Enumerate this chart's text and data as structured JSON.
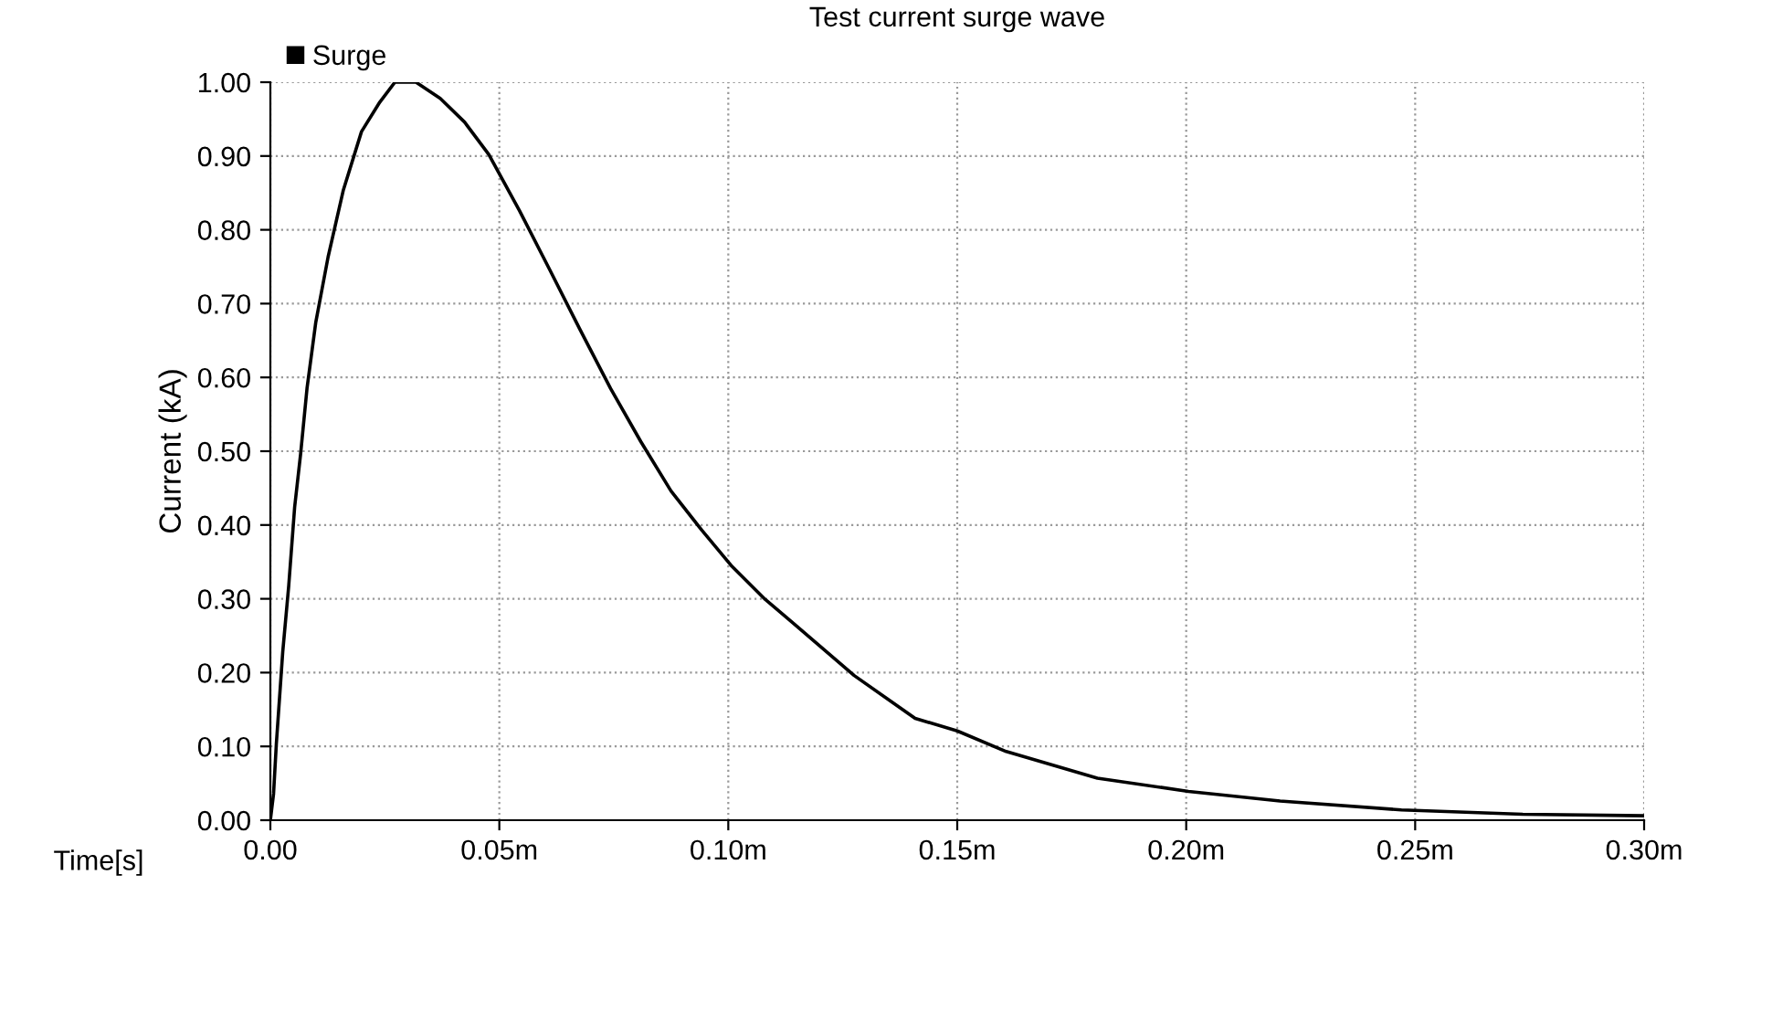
{
  "chart_data": {
    "type": "line",
    "title": "Test current surge wave",
    "xlabel": "Time[s]",
    "ylabel": "Current (kA)",
    "series": [
      {
        "name": "Surge",
        "color": "#000000",
        "x": [
          0,
          0.0007,
          0.0013,
          0.0027,
          0.004,
          0.0053,
          0.0066,
          0.008,
          0.0099,
          0.0126,
          0.0159,
          0.0199,
          0.0239,
          0.0272,
          0.0318,
          0.0371,
          0.0424,
          0.0477,
          0.0544,
          0.061,
          0.0676,
          0.0743,
          0.0809,
          0.0875,
          0.0942,
          0.1008,
          0.1081,
          0.1142,
          0.1275,
          0.1408,
          0.15,
          0.1607,
          0.1806,
          0.2005,
          0.2205,
          0.247,
          0.2735,
          0.3
        ],
        "values": [
          0,
          0.036,
          0.103,
          0.228,
          0.317,
          0.424,
          0.496,
          0.585,
          0.674,
          0.763,
          0.853,
          0.933,
          0.973,
          1.0,
          1.0,
          0.978,
          0.946,
          0.902,
          0.826,
          0.746,
          0.665,
          0.585,
          0.513,
          0.446,
          0.393,
          0.344,
          0.299,
          0.267,
          0.196,
          0.138,
          0.121,
          0.093,
          0.057,
          0.039,
          0.026,
          0.014,
          0.008,
          0.006
        ]
      }
    ],
    "xlim": [
      0,
      0.3
    ],
    "ylim": [
      0,
      1.0
    ],
    "xticks": [
      {
        "value": 0,
        "label": "0.00"
      },
      {
        "value": 0.05,
        "label": "0.05m"
      },
      {
        "value": 0.1,
        "label": "0.10m"
      },
      {
        "value": 0.15,
        "label": "0.15m"
      },
      {
        "value": 0.2,
        "label": "0.20m"
      },
      {
        "value": 0.25,
        "label": "0.25m"
      },
      {
        "value": 0.3,
        "label": "0.30m"
      }
    ],
    "yticks": [
      {
        "value": 0,
        "label": "0.00"
      },
      {
        "value": 0.1,
        "label": "0.10"
      },
      {
        "value": 0.2,
        "label": "0.20"
      },
      {
        "value": 0.3,
        "label": "0.30"
      },
      {
        "value": 0.4,
        "label": "0.40"
      },
      {
        "value": 0.5,
        "label": "0.50"
      },
      {
        "value": 0.6,
        "label": "0.60"
      },
      {
        "value": 0.7,
        "label": "0.70"
      },
      {
        "value": 0.8,
        "label": "0.80"
      },
      {
        "value": 0.9,
        "label": "0.90"
      },
      {
        "value": 1.0,
        "label": "1.00"
      }
    ],
    "grid": true,
    "legend": "top left",
    "marker": "none",
    "line_style": "solid"
  }
}
